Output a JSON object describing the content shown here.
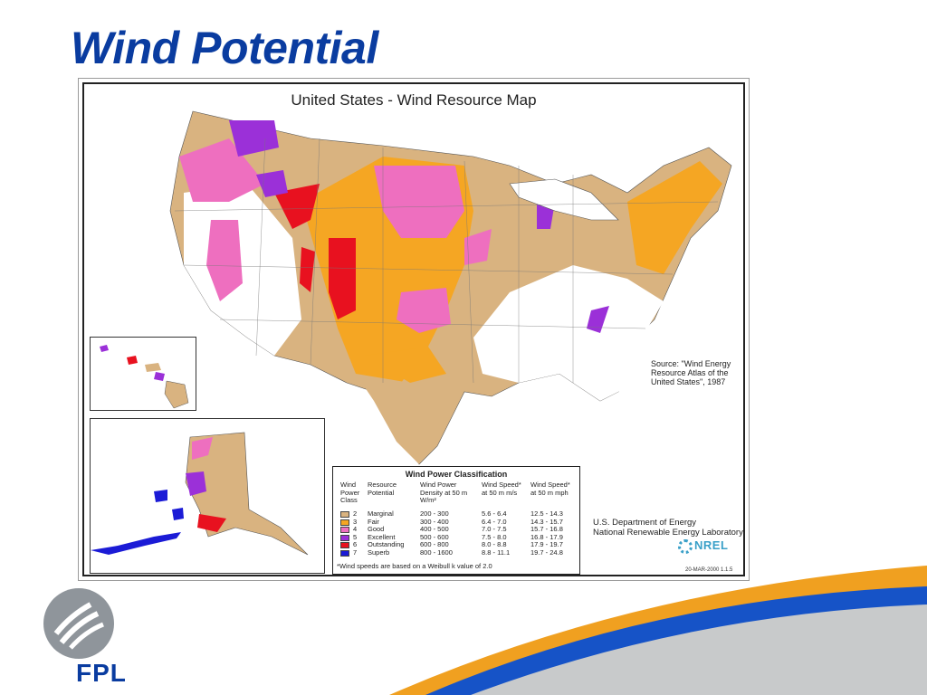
{
  "slide": {
    "title": "Wind Potential"
  },
  "map": {
    "title": "United States - Wind Resource Map",
    "source": "Source: \"Wind Energy Resource Atlas of the United States\", 1987",
    "agency_line1": "U.S. Department of Energy",
    "agency_line2": "National Renewable Energy Laboratory",
    "nrel_logo": "NREL",
    "date": "20-MAR-2000 1.1.5"
  },
  "legend": {
    "title": "Wind Power Classification",
    "headers": {
      "class": "Wind Power Class",
      "potential": "Resource Potential",
      "density": "Wind Power Density at 50 m W/m²",
      "speed_ms": "Wind Speed* at 50 m m/s",
      "speed_mph": "Wind Speed* at 50 m mph"
    },
    "rows": [
      {
        "cls": "2",
        "potential": "Marginal",
        "density": "200 - 300",
        "ms": "5.6 - 6.4",
        "mph": "12.5 - 14.3",
        "color": "#d9b380"
      },
      {
        "cls": "3",
        "potential": "Fair",
        "density": "300 - 400",
        "ms": "6.4 - 7.0",
        "mph": "14.3 - 15.7",
        "color": "#f5a623"
      },
      {
        "cls": "4",
        "potential": "Good",
        "density": "400 - 500",
        "ms": "7.0 - 7.5",
        "mph": "15.7 - 16.8",
        "color": "#ee6fbf"
      },
      {
        "cls": "5",
        "potential": "Excellent",
        "density": "500 - 600",
        "ms": "7.5 - 8.0",
        "mph": "16.8 - 17.9",
        "color": "#9b30d8"
      },
      {
        "cls": "6",
        "potential": "Outstanding",
        "density": "600 - 800",
        "ms": "8.0 - 8.8",
        "mph": "17.9 - 19.7",
        "color": "#e8111f"
      },
      {
        "cls": "7",
        "potential": "Superb",
        "density": "800 - 1600",
        "ms": "8.8 - 11.1",
        "mph": "19.7 - 24.8",
        "color": "#1b1bd6"
      }
    ],
    "footnote": "*Wind speeds are based on a Weibull k value of 2.0"
  },
  "brand": {
    "logo_text": "FPL",
    "primary_color": "#0a3ca0",
    "accent_blue": "#1653c7",
    "accent_orange": "#f0a020",
    "accent_gray": "#c8cacb"
  }
}
